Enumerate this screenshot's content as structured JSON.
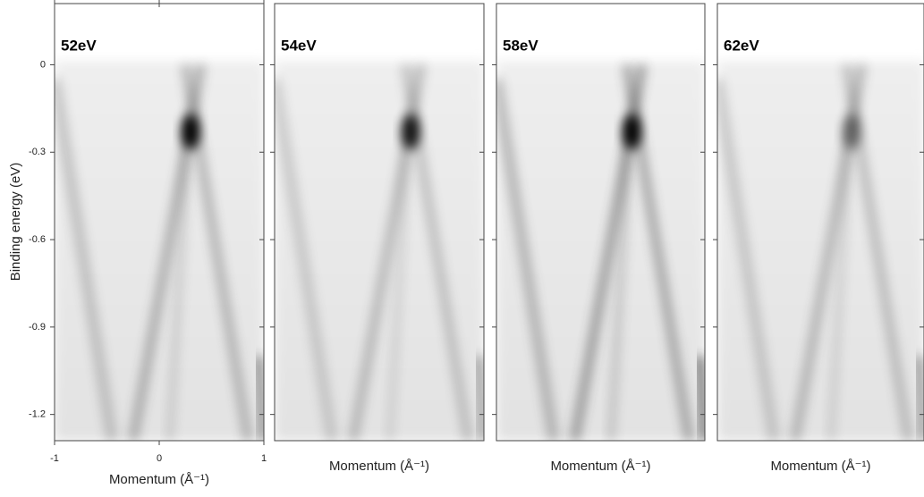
{
  "chart_data": [
    {
      "type": "heatmap",
      "title": "52eV",
      "xlabel": "Momentum (Å⁻¹)",
      "ylabel": "Binding energy (eV)",
      "xlim": [
        -1,
        1
      ],
      "xticks": [
        -1,
        0,
        1
      ],
      "ylim": [
        -1.29,
        0.21
      ],
      "yticks": [
        0,
        -0.3,
        -0.6,
        -0.9,
        -1.2
      ],
      "show_tick_labels": true
    },
    {
      "type": "heatmap",
      "title": "54eV",
      "xlabel": "Momentum (Å⁻¹)",
      "ylim": [
        -1.29,
        0.21
      ],
      "yticks": [
        0,
        -0.3,
        -0.6,
        -0.9,
        -1.2
      ],
      "show_tick_labels": false
    },
    {
      "type": "heatmap",
      "title": "58eV",
      "xlabel": "Momentum (Å⁻¹)",
      "ylim": [
        -1.29,
        0.21
      ],
      "yticks": [
        0,
        -0.3,
        -0.6,
        -0.9,
        -1.2
      ],
      "show_tick_labels": false
    },
    {
      "type": "heatmap",
      "title": "62eV",
      "xlabel": "Momentum (Å⁻¹)",
      "ylim": [
        -1.29,
        0.21
      ],
      "yticks": [
        0,
        -0.3,
        -0.6,
        -0.9,
        -1.2
      ],
      "show_tick_labels": false
    }
  ]
}
